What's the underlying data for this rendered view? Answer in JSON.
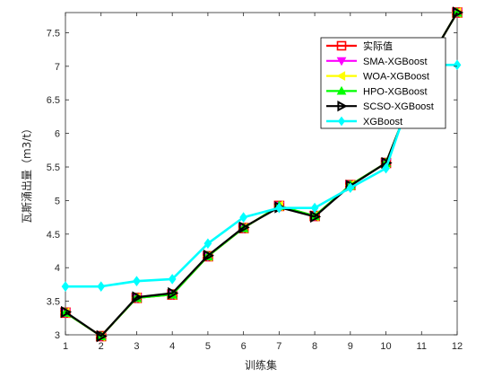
{
  "chart_data": {
    "type": "line",
    "xlabel": "训练集",
    "ylabel": "瓦斯涌出量（m3/t）",
    "x": [
      1,
      2,
      3,
      4,
      5,
      6,
      7,
      8,
      9,
      10,
      11,
      12
    ],
    "xlim": [
      1,
      12
    ],
    "ylim": [
      3,
      7.8
    ],
    "xticks": [
      "1",
      "2",
      "3",
      "4",
      "5",
      "6",
      "7",
      "8",
      "9",
      "10",
      "11",
      "12"
    ],
    "yticks": [
      "3",
      "3.5",
      "4",
      "4.5",
      "5",
      "5.5",
      "6",
      "6.5",
      "7",
      "7.5"
    ],
    "grid": false,
    "legend_position": "top-right",
    "series": [
      {
        "name": "实际值",
        "color": "#ff0000",
        "marker": "square",
        "values": [
          3.33,
          2.98,
          3.55,
          3.6,
          4.17,
          4.59,
          4.92,
          4.77,
          5.23,
          5.56,
          6.9,
          7.8
        ]
      },
      {
        "name": "SMA-XGBoost",
        "color": "#ff00ff",
        "marker": "triangle-down",
        "values": [
          3.33,
          2.98,
          3.55,
          3.6,
          4.17,
          4.59,
          4.92,
          4.77,
          5.23,
          5.56,
          6.9,
          7.8
        ]
      },
      {
        "name": "WOA-XGBoost",
        "color": "#ffff00",
        "marker": "triangle-left",
        "values": [
          3.33,
          2.98,
          3.55,
          3.6,
          4.17,
          4.59,
          4.92,
          4.77,
          5.23,
          5.56,
          6.9,
          7.8
        ]
      },
      {
        "name": "HPO-XGBoost",
        "color": "#00ff00",
        "marker": "triangle-up",
        "values": [
          3.33,
          2.98,
          3.55,
          3.6,
          4.17,
          4.59,
          4.92,
          4.77,
          5.23,
          5.56,
          6.9,
          7.8
        ]
      },
      {
        "name": "SCSO-XGBoost",
        "color": "#000000",
        "marker": "triangle-right",
        "values": [
          3.34,
          2.98,
          3.56,
          3.62,
          4.18,
          4.6,
          4.9,
          4.76,
          5.22,
          5.56,
          6.9,
          7.8
        ]
      },
      {
        "name": "XGBoost",
        "color": "#00ffff",
        "marker": "diamond",
        "values": [
          3.72,
          3.72,
          3.8,
          3.83,
          4.36,
          4.75,
          4.89,
          4.89,
          5.19,
          5.48,
          7.02,
          7.02
        ]
      }
    ]
  }
}
